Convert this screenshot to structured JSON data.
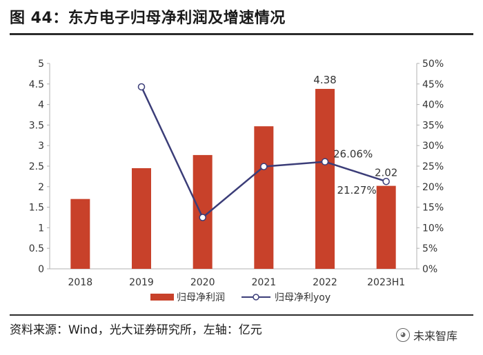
{
  "page_title": "图 44：东方电子归母净利润及增速情况",
  "source_text": "资料来源：Wind，光大证券研究所，左轴：亿元",
  "watermark": "未来智库",
  "watermark_icon": "wechat-icon",
  "colors": {
    "bar": "#c8412a",
    "line": "#3b3d78",
    "axis": "#b0b0b0",
    "text": "#333333"
  },
  "chart_data": {
    "type": "bar+line",
    "categories": [
      "2018",
      "2019",
      "2020",
      "2021",
      "2022",
      "2023H1"
    ],
    "series": [
      {
        "name": "归母净利润",
        "type": "bar",
        "axis": "left",
        "values": [
          1.7,
          2.45,
          2.77,
          3.47,
          4.38,
          2.02
        ]
      },
      {
        "name": "归母净利yoy",
        "type": "line",
        "axis": "right",
        "values": [
          null,
          44.3,
          12.5,
          24.9,
          26.06,
          21.27
        ]
      }
    ],
    "left_axis": {
      "min": 0,
      "max": 5,
      "ticks": [
        "0",
        "0.5",
        "1",
        "1.5",
        "2",
        "2.5",
        "3",
        "3.5",
        "4",
        "4.5",
        "5"
      ]
    },
    "right_axis": {
      "min": 0,
      "max": 50,
      "ticks": [
        "0%",
        "5%",
        "10%",
        "15%",
        "20%",
        "25%",
        "30%",
        "35%",
        "40%",
        "45%",
        "50%"
      ]
    },
    "data_labels": [
      {
        "series": "归母净利润",
        "category": "2022",
        "text": "4.38"
      },
      {
        "series": "归母净利润",
        "category": "2023H1",
        "text": "2.02"
      },
      {
        "series": "归母净利yoy",
        "category": "2022",
        "text": "26.06%"
      },
      {
        "series": "归母净利yoy",
        "category": "2023H1",
        "text": "21.27%"
      }
    ],
    "legend": {
      "position": "bottom",
      "items": [
        "归母净利润",
        "归母净利yoy"
      ]
    },
    "grid": false
  }
}
